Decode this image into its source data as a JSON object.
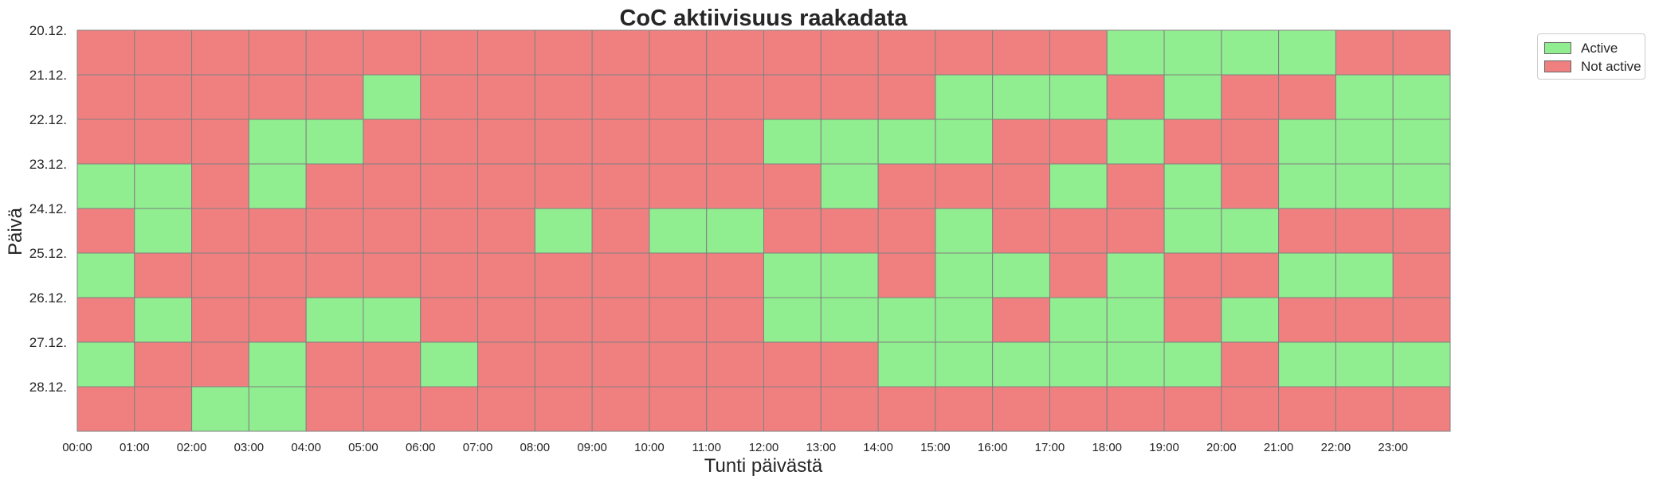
{
  "chart_data": {
    "type": "heatmap",
    "title": "CoC aktiivisuus raakadata",
    "xlabel": "Tunti päivästä",
    "ylabel": "Päivä",
    "x_ticks": [
      "00:00",
      "01:00",
      "02:00",
      "03:00",
      "04:00",
      "05:00",
      "06:00",
      "07:00",
      "08:00",
      "09:00",
      "10:00",
      "11:00",
      "12:00",
      "13:00",
      "14:00",
      "15:00",
      "16:00",
      "17:00",
      "18:00",
      "19:00",
      "20:00",
      "21:00",
      "22:00",
      "23:00"
    ],
    "y_ticks": [
      "20.12.",
      "21.12.",
      "22.12.",
      "23.12.",
      "24.12.",
      "25.12.",
      "26.12.",
      "27.12.",
      "28.12."
    ],
    "legend": [
      {
        "label": "Active",
        "color": "#90ee90"
      },
      {
        "label": "Not active",
        "color": "#f08080"
      }
    ],
    "legend_position": "outside-top-right",
    "colors": {
      "active": "#90ee90",
      "not_active": "#f08080",
      "cell_border": "#808080"
    },
    "grid": false,
    "values": [
      [
        0,
        0,
        0,
        0,
        0,
        0,
        0,
        0,
        0,
        0,
        0,
        0,
        0,
        0,
        0,
        0,
        0,
        0,
        1,
        1,
        1,
        1,
        0,
        0
      ],
      [
        0,
        0,
        0,
        0,
        0,
        1,
        0,
        0,
        0,
        0,
        0,
        0,
        0,
        0,
        0,
        1,
        1,
        1,
        0,
        1,
        0,
        0,
        1,
        1
      ],
      [
        0,
        0,
        0,
        1,
        1,
        0,
        0,
        0,
        0,
        0,
        0,
        0,
        1,
        1,
        1,
        1,
        0,
        0,
        1,
        0,
        0,
        1,
        1,
        1
      ],
      [
        1,
        1,
        0,
        1,
        0,
        0,
        0,
        0,
        0,
        0,
        0,
        0,
        0,
        1,
        0,
        0,
        0,
        1,
        0,
        1,
        0,
        1,
        1,
        1
      ],
      [
        0,
        1,
        0,
        0,
        0,
        0,
        0,
        0,
        1,
        0,
        1,
        1,
        0,
        0,
        0,
        1,
        0,
        0,
        0,
        1,
        1,
        0,
        0,
        0
      ],
      [
        1,
        0,
        0,
        0,
        0,
        0,
        0,
        0,
        0,
        0,
        0,
        0,
        1,
        1,
        0,
        1,
        1,
        0,
        1,
        0,
        0,
        1,
        1,
        0
      ],
      [
        0,
        1,
        0,
        0,
        1,
        1,
        0,
        0,
        0,
        0,
        0,
        0,
        1,
        1,
        1,
        1,
        0,
        1,
        1,
        0,
        1,
        0,
        0,
        0
      ],
      [
        1,
        0,
        0,
        1,
        0,
        0,
        1,
        0,
        0,
        0,
        0,
        0,
        0,
        0,
        1,
        1,
        1,
        1,
        1,
        1,
        0,
        1,
        1,
        1
      ],
      [
        0,
        0,
        1,
        1,
        0,
        0,
        0,
        0,
        0,
        0,
        0,
        0,
        0,
        0,
        0,
        0,
        0,
        0,
        0,
        0,
        0,
        0,
        0,
        0
      ]
    ]
  }
}
